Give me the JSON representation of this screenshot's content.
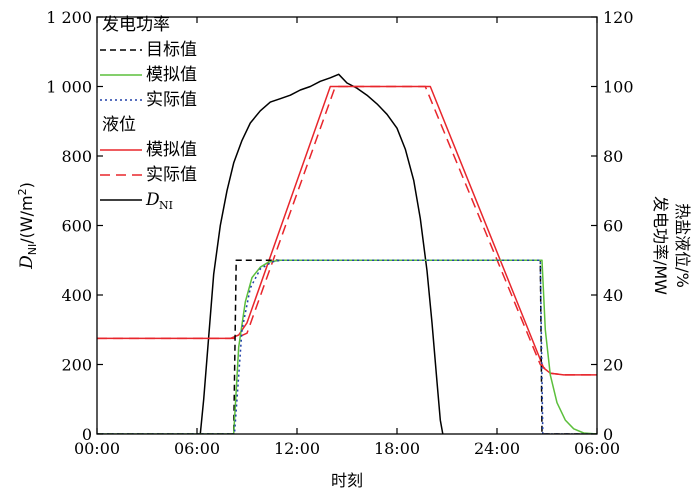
{
  "chart_data": {
    "type": "line",
    "xlabel": "时刻",
    "ylabel_left": {
      "base": "D",
      "sub": "NI",
      "rest": "/(W/m",
      "sup": "2",
      "close": ")"
    },
    "ylabel_right": [
      "发电功率/MW",
      "热盐液位/%"
    ],
    "x_ticks": [
      "00:00",
      "06:00",
      "12:00",
      "18:00",
      "24:00",
      "06:00"
    ],
    "x_range_hours": [
      0,
      30
    ],
    "y_left_range": [
      0,
      1200
    ],
    "y_left_ticks": [
      "0",
      "200",
      "400",
      "600",
      "800",
      "1 000",
      "1 200"
    ],
    "y_right_range": [
      0,
      120
    ],
    "y_right_ticks": [
      "0",
      "20",
      "40",
      "60",
      "80",
      "100",
      "120"
    ],
    "legend": {
      "group1_title": "发电功率",
      "group2_title": "液位",
      "entries": [
        {
          "label": "目标值",
          "color": "#000000",
          "dash": "6,4"
        },
        {
          "label": "模拟值",
          "color": "#5cbf3c",
          "dash": ""
        },
        {
          "label": "实际值",
          "color": "#1f3fa8",
          "dash": "2,3"
        },
        {
          "label": "模拟值",
          "color": "#e8262c",
          "dash": ""
        },
        {
          "label": "实际值",
          "color": "#e8262c",
          "dash": "10,6"
        },
        {
          "label": "D",
          "sub": "NI",
          "color": "#000000",
          "dash": ""
        }
      ]
    },
    "series": [
      {
        "key": "target",
        "axis": "right",
        "color": "#000000",
        "dash": "6,4",
        "x": [
          0,
          8.2,
          8.35,
          26.6,
          26.7,
          30
        ],
        "y": [
          0,
          0,
          50,
          50,
          0,
          0
        ]
      },
      {
        "key": "power_sim",
        "axis": "right",
        "color": "#5cbf3c",
        "dash": "",
        "x": [
          0,
          8.2,
          8.5,
          8.9,
          9.3,
          9.8,
          10.3,
          11,
          26.7,
          26.9,
          27.2,
          27.6,
          28.1,
          28.6,
          29.2,
          30
        ],
        "y": [
          0,
          0,
          25,
          38,
          45,
          48,
          49.5,
          50,
          50,
          30,
          17,
          9,
          4,
          1.5,
          0.3,
          0
        ]
      },
      {
        "key": "power_actual",
        "axis": "right",
        "color": "#1f3fa8",
        "dash": "2,3",
        "x": [
          0,
          8.25,
          8.7,
          9.2,
          9.8,
          10.5,
          11,
          26.6,
          26.75,
          30
        ],
        "y": [
          0,
          0,
          30,
          42,
          47.5,
          49.5,
          50,
          50,
          0,
          0
        ]
      },
      {
        "key": "level_sim",
        "axis": "right",
        "color": "#e8262c",
        "dash": "",
        "x": [
          0,
          8,
          8.5,
          9,
          14,
          20,
          26.8,
          27.2,
          28,
          30
        ],
        "y": [
          27.5,
          27.5,
          28.5,
          32,
          100,
          100,
          19,
          17.5,
          17,
          17
        ]
      },
      {
        "key": "level_actual",
        "axis": "right",
        "color": "#e8262c",
        "dash": "10,6",
        "x": [
          0,
          8.3,
          9,
          14.3,
          19.7,
          26.6,
          27.2,
          28,
          30
        ],
        "y": [
          27.5,
          27.5,
          29,
          100,
          100,
          20,
          17.5,
          17,
          17
        ]
      },
      {
        "key": "dni",
        "axis": "left",
        "color": "#000000",
        "dash": "",
        "x": [
          6.2,
          6.4,
          6.7,
          7.0,
          7.4,
          7.8,
          8.2,
          8.7,
          9.2,
          9.8,
          10.4,
          11.0,
          11.6,
          12.2,
          12.8,
          13.4,
          14.0,
          14.5,
          15.0,
          15.6,
          16.2,
          16.8,
          17.4,
          18.0,
          18.5,
          19.0,
          19.4,
          19.8,
          20.1,
          20.4,
          20.6,
          20.75
        ],
        "y": [
          0,
          100,
          280,
          460,
          600,
          700,
          780,
          845,
          895,
          930,
          955,
          965,
          975,
          990,
          1000,
          1015,
          1025,
          1035,
          1010,
          995,
          975,
          950,
          920,
          880,
          820,
          730,
          620,
          470,
          320,
          150,
          40,
          0
        ]
      }
    ]
  }
}
